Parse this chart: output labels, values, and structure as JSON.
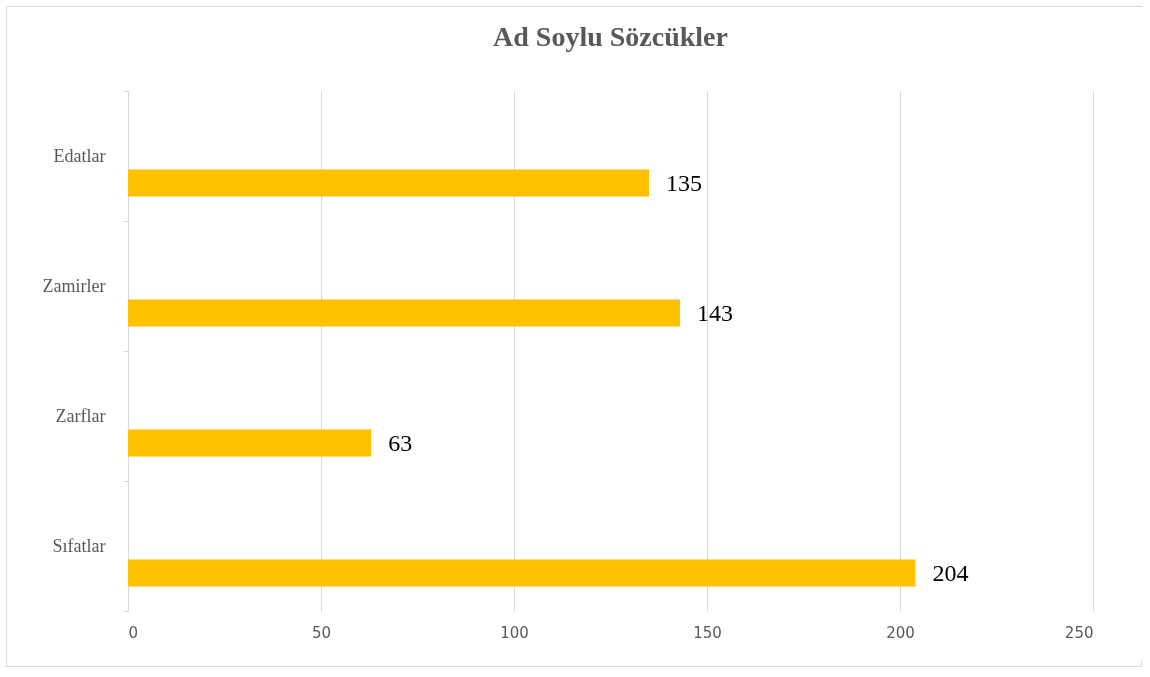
{
  "chart_data": {
    "type": "bar",
    "title": "Ad Soylu Sözcükler",
    "orientation": "horizontal",
    "categories": [
      "Edatlar",
      "Zamirler",
      "Zarflar",
      "Sıfatlar"
    ],
    "values": [
      135,
      143,
      63,
      204
    ],
    "color": "#ffc000",
    "xlim": [
      0,
      250
    ],
    "xticks": [
      0,
      50,
      100,
      150,
      200,
      250
    ],
    "grid": "x",
    "data_labels": true
  }
}
